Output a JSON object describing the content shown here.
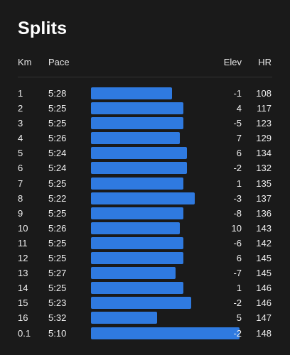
{
  "title": "Splits",
  "columns": {
    "km": "Km",
    "pace": "Pace",
    "elev": "Elev",
    "hr": "HR"
  },
  "colors": {
    "background": "#1a1a1a",
    "bar": "#2f7ae0",
    "text": "#f0f0f0"
  },
  "splits": [
    {
      "km": "1",
      "pace": "5:28",
      "pace_seconds": 328,
      "elev": "-1",
      "hr": "108"
    },
    {
      "km": "2",
      "pace": "5:25",
      "pace_seconds": 325,
      "elev": "4",
      "hr": "117"
    },
    {
      "km": "3",
      "pace": "5:25",
      "pace_seconds": 325,
      "elev": "-5",
      "hr": "123"
    },
    {
      "km": "4",
      "pace": "5:26",
      "pace_seconds": 326,
      "elev": "7",
      "hr": "129"
    },
    {
      "km": "5",
      "pace": "5:24",
      "pace_seconds": 324,
      "elev": "6",
      "hr": "134"
    },
    {
      "km": "6",
      "pace": "5:24",
      "pace_seconds": 324,
      "elev": "-2",
      "hr": "132"
    },
    {
      "km": "7",
      "pace": "5:25",
      "pace_seconds": 325,
      "elev": "1",
      "hr": "135"
    },
    {
      "km": "8",
      "pace": "5:22",
      "pace_seconds": 322,
      "elev": "-3",
      "hr": "137"
    },
    {
      "km": "9",
      "pace": "5:25",
      "pace_seconds": 325,
      "elev": "-8",
      "hr": "136"
    },
    {
      "km": "10",
      "pace": "5:26",
      "pace_seconds": 326,
      "elev": "10",
      "hr": "143"
    },
    {
      "km": "11",
      "pace": "5:25",
      "pace_seconds": 325,
      "elev": "-6",
      "hr": "142"
    },
    {
      "km": "12",
      "pace": "5:25",
      "pace_seconds": 325,
      "elev": "6",
      "hr": "145"
    },
    {
      "km": "13",
      "pace": "5:27",
      "pace_seconds": 327,
      "elev": "-7",
      "hr": "145"
    },
    {
      "km": "14",
      "pace": "5:25",
      "pace_seconds": 325,
      "elev": "1",
      "hr": "146"
    },
    {
      "km": "15",
      "pace": "5:23",
      "pace_seconds": 323,
      "elev": "-2",
      "hr": "146"
    },
    {
      "km": "16",
      "pace": "5:32",
      "pace_seconds": 332,
      "elev": "5",
      "hr": "147"
    },
    {
      "km": "0.1",
      "pace": "5:10",
      "pace_seconds": 310,
      "elev": "-2",
      "hr": "148"
    }
  ]
}
